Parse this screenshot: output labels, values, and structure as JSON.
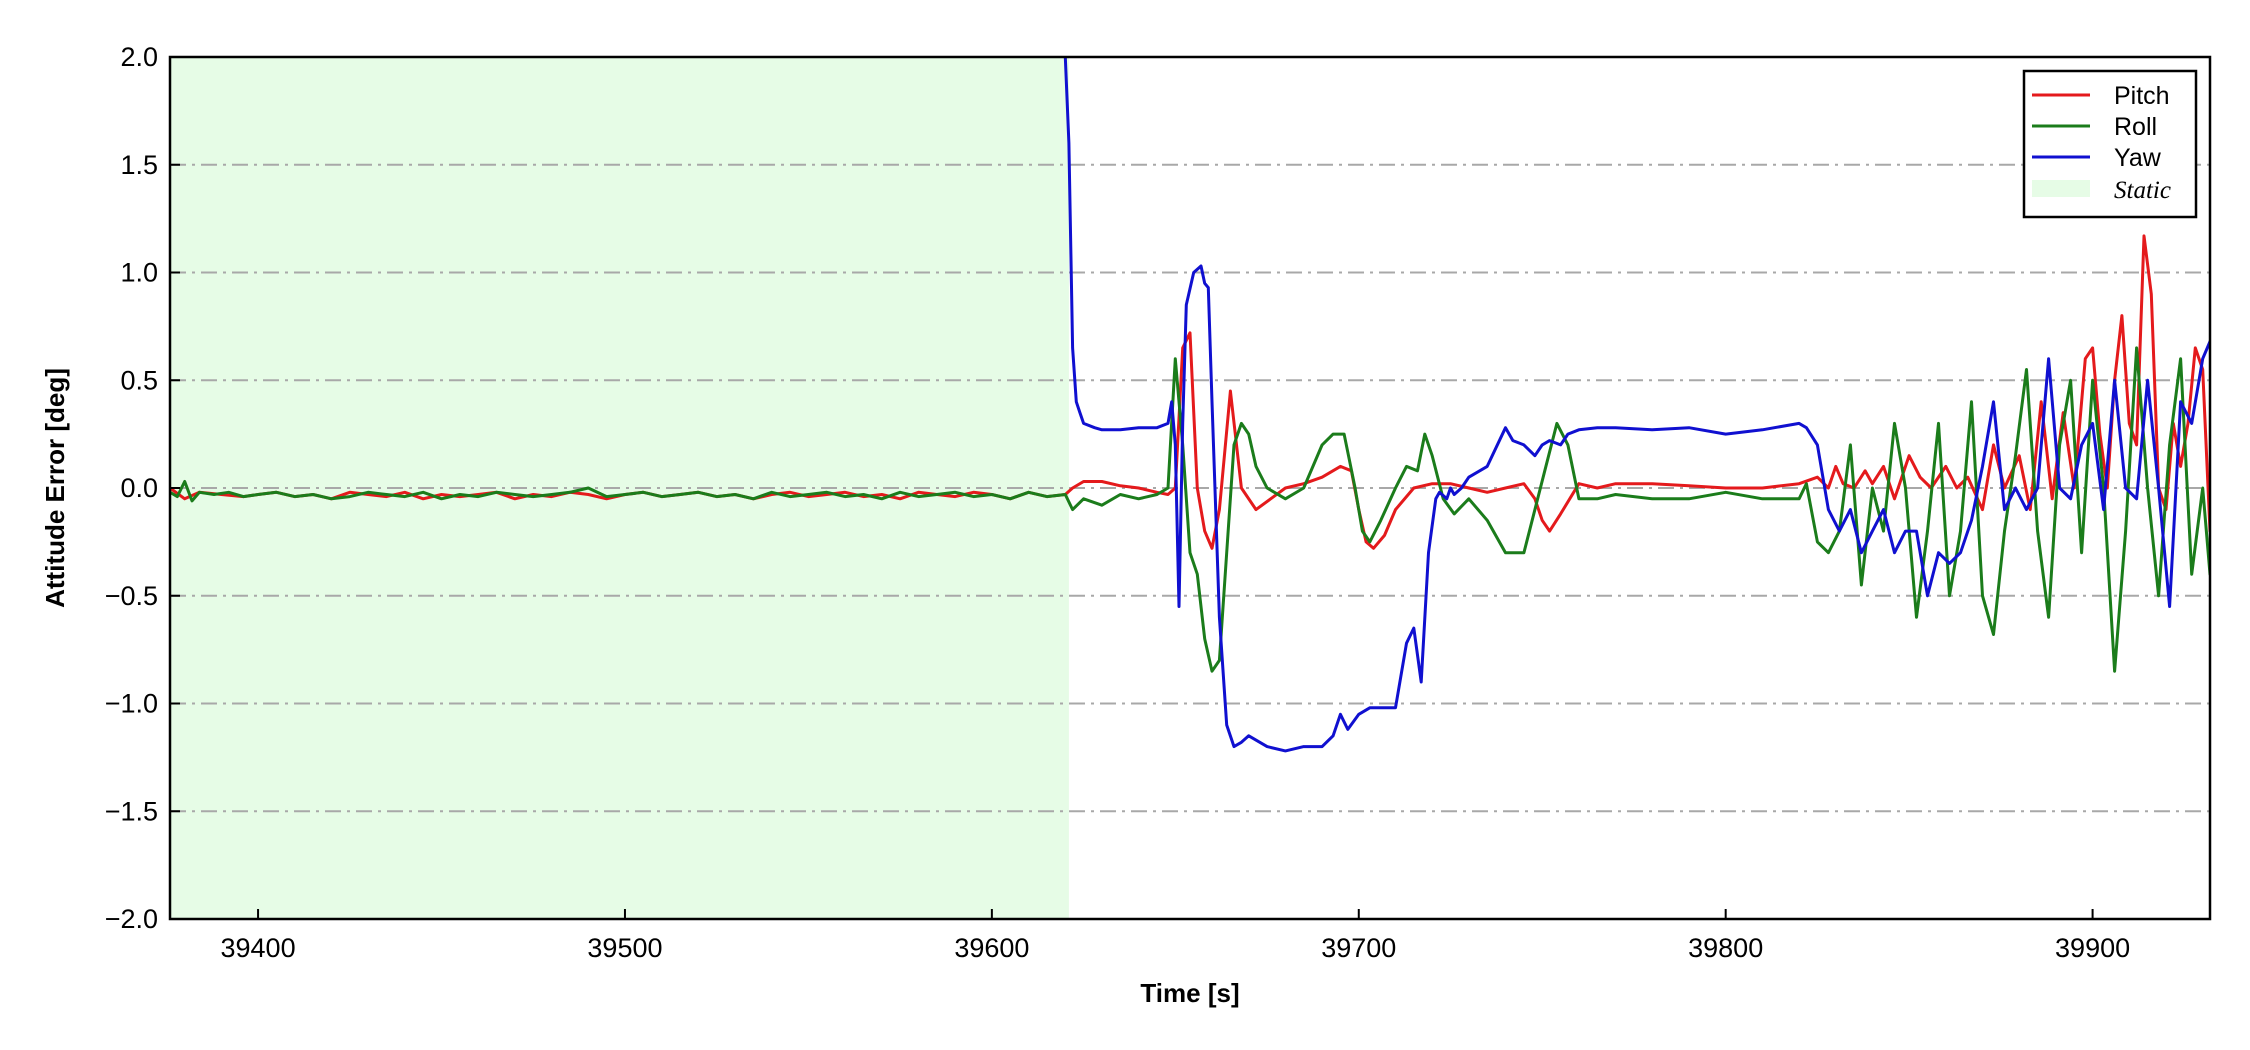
{
  "chart_data": {
    "type": "line",
    "xlabel": "Time [s]",
    "ylabel": "Attitude Error [deg]",
    "xlim": [
      39376,
      39932
    ],
    "ylim": [
      -2.0,
      2.0
    ],
    "x_ticks": [
      39400,
      39500,
      39600,
      39700,
      39800,
      39900
    ],
    "y_ticks": [
      2.0,
      1.5,
      1.0,
      0.5,
      0.0,
      -0.5,
      -1.0,
      -1.5,
      -2.0
    ],
    "y_tick_labels": [
      "2.0",
      "1.5",
      "1.0",
      "0.5",
      "0.0",
      "−0.5",
      "−1.0",
      "−1.5",
      "−2.0"
    ],
    "grid": "horizontal dash-dot",
    "legend_position": "top-right",
    "static_region": {
      "label": "Static",
      "x_range": [
        39376,
        39621
      ],
      "color": "#e6fce6"
    },
    "series": [
      {
        "name": "Pitch",
        "color": "#e41a1c",
        "x": [
          39376,
          39380,
          39384,
          39390,
          39396,
          39400,
          39405,
          39410,
          39415,
          39420,
          39425,
          39430,
          39435,
          39440,
          39445,
          39450,
          39455,
          39460,
          39465,
          39470,
          39475,
          39480,
          39485,
          39490,
          39495,
          39500,
          39505,
          39510,
          39515,
          39520,
          39525,
          39530,
          39535,
          39540,
          39545,
          39550,
          39555,
          39560,
          39565,
          39570,
          39575,
          39580,
          39585,
          39590,
          39595,
          39600,
          39605,
          39610,
          39615,
          39620,
          39622,
          39625,
          39630,
          39635,
          39640,
          39645,
          39648,
          39650,
          39652,
          39654,
          39656,
          39658,
          39660,
          39662,
          39665,
          39668,
          39672,
          39676,
          39680,
          39685,
          39690,
          39695,
          39698,
          39700,
          39702,
          39704,
          39707,
          39710,
          39715,
          39720,
          39725,
          39730,
          39735,
          39740,
          39745,
          39748,
          39750,
          39752,
          39755,
          39760,
          39765,
          39770,
          39780,
          39790,
          39800,
          39810,
          39820,
          39825,
          39828,
          39830,
          39832,
          39835,
          39838,
          39840,
          39843,
          39846,
          39850,
          39853,
          39856,
          39860,
          39863,
          39866,
          39870,
          39873,
          39876,
          39880,
          39883,
          39886,
          39889,
          39892,
          39895,
          39898,
          39900,
          39902,
          39904,
          39906,
          39908,
          39910,
          39912,
          39914,
          39916,
          39918,
          39920,
          39922,
          39924,
          39926,
          39928,
          39930,
          39932
        ],
        "values": [
          0.0,
          -0.05,
          -0.02,
          -0.03,
          -0.04,
          -0.03,
          -0.02,
          -0.04,
          -0.03,
          -0.05,
          -0.02,
          -0.03,
          -0.04,
          -0.02,
          -0.05,
          -0.03,
          -0.04,
          -0.03,
          -0.02,
          -0.05,
          -0.03,
          -0.04,
          -0.02,
          -0.03,
          -0.05,
          -0.03,
          -0.02,
          -0.04,
          -0.03,
          -0.02,
          -0.04,
          -0.03,
          -0.05,
          -0.03,
          -0.02,
          -0.04,
          -0.03,
          -0.02,
          -0.04,
          -0.03,
          -0.05,
          -0.02,
          -0.03,
          -0.04,
          -0.02,
          -0.03,
          -0.05,
          -0.02,
          -0.04,
          -0.03,
          0.0,
          0.03,
          0.03,
          0.01,
          0.0,
          -0.02,
          -0.03,
          0.0,
          0.65,
          0.72,
          0.0,
          -0.2,
          -0.28,
          -0.1,
          0.45,
          0.0,
          -0.1,
          -0.05,
          0.0,
          0.02,
          0.05,
          0.1,
          0.08,
          -0.1,
          -0.25,
          -0.28,
          -0.22,
          -0.1,
          0.0,
          0.02,
          0.02,
          0.0,
          -0.02,
          0.0,
          0.02,
          -0.05,
          -0.15,
          -0.2,
          -0.12,
          0.02,
          0.0,
          0.02,
          0.02,
          0.01,
          0.0,
          0.0,
          0.02,
          0.05,
          0.0,
          0.1,
          0.02,
          0.0,
          0.08,
          0.02,
          0.1,
          -0.05,
          0.15,
          0.05,
          0.0,
          0.1,
          0.0,
          0.05,
          -0.1,
          0.2,
          0.0,
          0.15,
          -0.1,
          0.4,
          -0.05,
          0.35,
          0.0,
          0.6,
          0.65,
          0.25,
          0.0,
          0.5,
          0.8,
          0.3,
          0.2,
          1.17,
          0.9,
          0.0,
          -0.1,
          0.3,
          0.1,
          0.3,
          0.65,
          0.55,
          -0.2
        ],
        "linewidth": 3
      },
      {
        "name": "Roll",
        "color": "#1b7c1b",
        "x": [
          39376,
          39378,
          39380,
          39382,
          39384,
          39388,
          39392,
          39396,
          39400,
          39405,
          39410,
          39415,
          39420,
          39425,
          39430,
          39435,
          39440,
          39445,
          39450,
          39455,
          39460,
          39465,
          39470,
          39475,
          39480,
          39485,
          39490,
          39495,
          39500,
          39505,
          39510,
          39515,
          39520,
          39525,
          39530,
          39535,
          39540,
          39545,
          39550,
          39555,
          39560,
          39565,
          39570,
          39575,
          39580,
          39585,
          39590,
          39595,
          39600,
          39605,
          39610,
          39615,
          39620,
          39622,
          39625,
          39630,
          39635,
          39640,
          39645,
          39648,
          39650,
          39652,
          39654,
          39656,
          39658,
          39660,
          39662,
          39664,
          39666,
          39668,
          39670,
          39672,
          39675,
          39680,
          39685,
          39690,
          39693,
          39696,
          39699,
          39701,
          39703,
          39706,
          39710,
          39713,
          39716,
          39718,
          39720,
          39723,
          39726,
          39730,
          39735,
          39740,
          39745,
          39748,
          39751,
          39754,
          39757,
          39760,
          39765,
          39770,
          39780,
          39790,
          39800,
          39810,
          39820,
          39822,
          39825,
          39828,
          39831,
          39834,
          39837,
          39840,
          39843,
          39846,
          39849,
          39852,
          39855,
          39858,
          39861,
          39864,
          39867,
          39870,
          39873,
          39876,
          39879,
          39882,
          39885,
          39888,
          39891,
          39894,
          39897,
          39900,
          39903,
          39906,
          39909,
          39912,
          39915,
          39918,
          39921,
          39924,
          39927,
          39930,
          39932
        ],
        "values": [
          -0.02,
          -0.04,
          0.03,
          -0.06,
          -0.02,
          -0.03,
          -0.02,
          -0.04,
          -0.03,
          -0.02,
          -0.04,
          -0.03,
          -0.05,
          -0.04,
          -0.02,
          -0.03,
          -0.04,
          -0.02,
          -0.05,
          -0.03,
          -0.04,
          -0.02,
          -0.03,
          -0.04,
          -0.03,
          -0.02,
          0.0,
          -0.04,
          -0.03,
          -0.02,
          -0.04,
          -0.03,
          -0.02,
          -0.04,
          -0.03,
          -0.05,
          -0.02,
          -0.04,
          -0.03,
          -0.02,
          -0.04,
          -0.03,
          -0.05,
          -0.02,
          -0.04,
          -0.03,
          -0.02,
          -0.04,
          -0.03,
          -0.05,
          -0.02,
          -0.04,
          -0.03,
          -0.1,
          -0.05,
          -0.08,
          -0.03,
          -0.05,
          -0.03,
          0.0,
          0.6,
          0.2,
          -0.3,
          -0.4,
          -0.7,
          -0.85,
          -0.8,
          -0.3,
          0.2,
          0.3,
          0.25,
          0.1,
          0.0,
          -0.05,
          0.0,
          0.2,
          0.25,
          0.25,
          0.0,
          -0.2,
          -0.25,
          -0.15,
          0.0,
          0.1,
          0.08,
          0.25,
          0.15,
          -0.05,
          -0.12,
          -0.05,
          -0.15,
          -0.3,
          -0.3,
          -0.1,
          0.1,
          0.3,
          0.2,
          -0.05,
          -0.05,
          -0.03,
          -0.05,
          -0.05,
          -0.02,
          -0.05,
          -0.05,
          0.02,
          -0.25,
          -0.3,
          -0.2,
          0.2,
          -0.45,
          0.0,
          -0.2,
          0.3,
          0.0,
          -0.6,
          -0.2,
          0.3,
          -0.5,
          -0.2,
          0.4,
          -0.5,
          -0.68,
          -0.2,
          0.15,
          0.55,
          -0.2,
          -0.6,
          0.2,
          0.5,
          -0.3,
          0.5,
          0.0,
          -0.85,
          -0.2,
          0.65,
          0.0,
          -0.5,
          0.2,
          0.6,
          -0.4,
          0.0,
          -0.4
        ],
        "linewidth": 3
      },
      {
        "name": "Yaw",
        "color": "#1010d0",
        "x": [
          39620,
          39621,
          39622,
          39623,
          39624,
          39625,
          39628,
          39630,
          39635,
          39640,
          39645,
          39648,
          39649,
          39650,
          39651,
          39652,
          39653,
          39655,
          39657,
          39658,
          39659,
          39660,
          39662,
          39664,
          39666,
          39668,
          39670,
          39675,
          39680,
          39685,
          39690,
          39693,
          39695,
          39697,
          39700,
          39703,
          39706,
          39710,
          39713,
          39715,
          39717,
          39719,
          39721,
          39722,
          39724,
          39725,
          39726,
          39728,
          39730,
          39735,
          39740,
          39742,
          39745,
          39748,
          39750,
          39752,
          39755,
          39757,
          39760,
          39765,
          39770,
          39780,
          39790,
          39800,
          39810,
          39820,
          39822,
          39825,
          39828,
          39831,
          39834,
          39837,
          39840,
          39843,
          39846,
          39849,
          39852,
          39855,
          39858,
          39861,
          39864,
          39867,
          39870,
          39873,
          39876,
          39879,
          39882,
          39885,
          39888,
          39891,
          39894,
          39897,
          39900,
          39903,
          39906,
          39909,
          39912,
          39915,
          39918,
          39921,
          39924,
          39927,
          39930,
          39932
        ],
        "values": [
          2.0,
          1.6,
          0.65,
          0.4,
          0.35,
          0.3,
          0.28,
          0.27,
          0.27,
          0.28,
          0.28,
          0.3,
          0.4,
          0.2,
          -0.55,
          0.3,
          0.85,
          1.0,
          1.03,
          0.95,
          0.93,
          0.4,
          -0.6,
          -1.1,
          -1.2,
          -1.18,
          -1.15,
          -1.2,
          -1.22,
          -1.2,
          -1.2,
          -1.15,
          -1.05,
          -1.12,
          -1.05,
          -1.02,
          -1.02,
          -1.02,
          -0.72,
          -0.65,
          -0.9,
          -0.3,
          -0.05,
          -0.02,
          -0.05,
          0.0,
          -0.03,
          0.0,
          0.05,
          0.1,
          0.28,
          0.22,
          0.2,
          0.15,
          0.2,
          0.22,
          0.2,
          0.25,
          0.27,
          0.28,
          0.28,
          0.27,
          0.28,
          0.25,
          0.27,
          0.3,
          0.28,
          0.2,
          -0.1,
          -0.2,
          -0.1,
          -0.3,
          -0.2,
          -0.1,
          -0.3,
          -0.2,
          -0.2,
          -0.5,
          -0.3,
          -0.35,
          -0.3,
          -0.15,
          0.1,
          0.4,
          -0.1,
          0.0,
          -0.1,
          0.0,
          0.6,
          0.0,
          -0.05,
          0.2,
          0.3,
          -0.1,
          0.5,
          0.0,
          -0.05,
          0.5,
          0.0,
          -0.55,
          0.4,
          0.3,
          0.6,
          0.68
        ],
        "linewidth": 3
      }
    ]
  }
}
